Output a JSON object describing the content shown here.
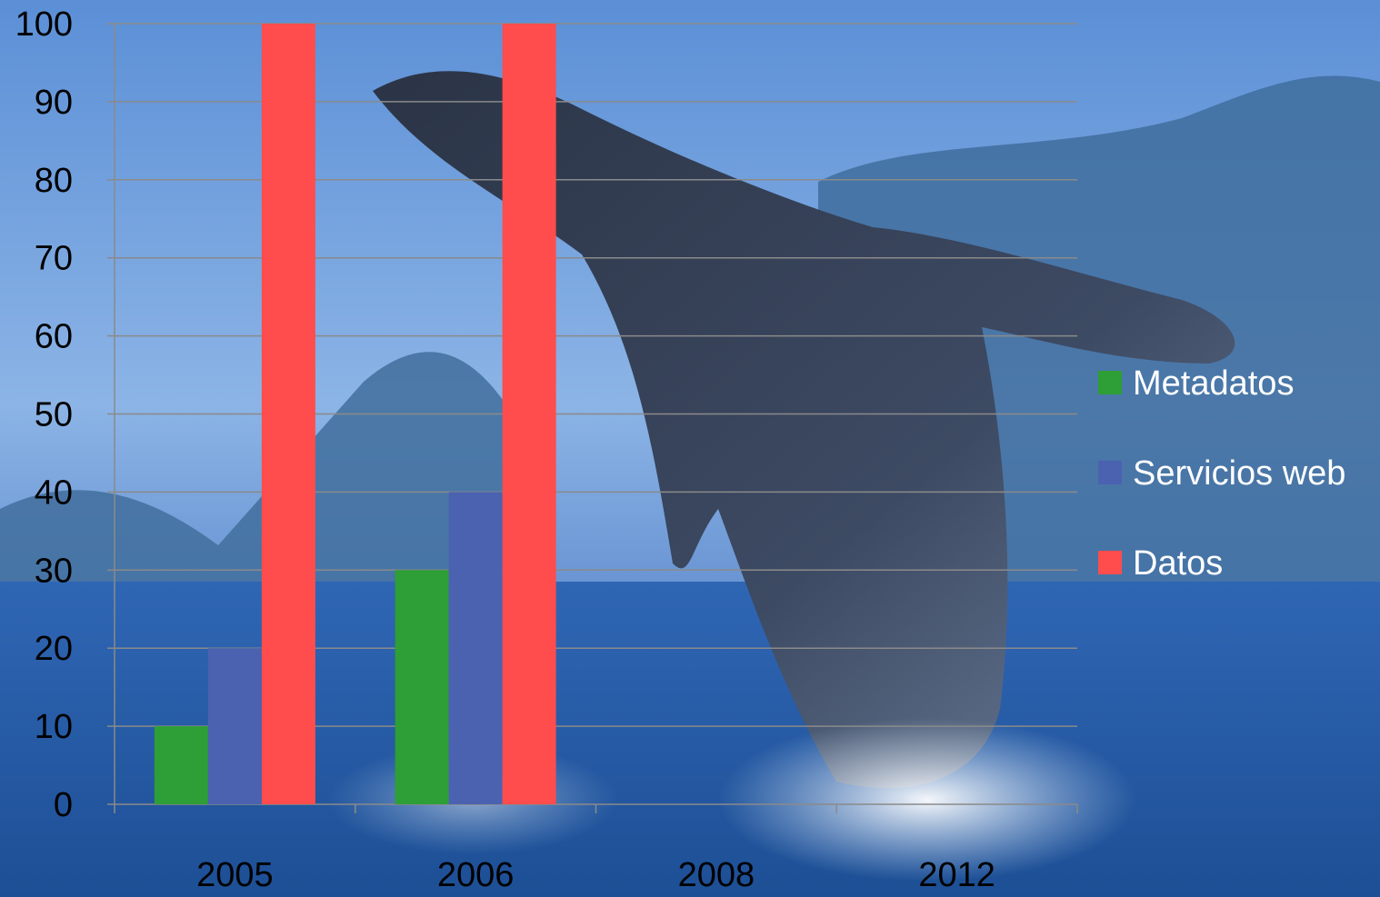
{
  "chart_data": {
    "type": "bar",
    "categories": [
      "2005",
      "2006",
      "2008",
      "2012"
    ],
    "series": [
      {
        "name": "Metadatos",
        "color": "#2e9e37",
        "values": [
          10,
          30,
          null,
          null
        ]
      },
      {
        "name": "Servicios web",
        "color": "#4a62b0",
        "values": [
          20,
          40,
          null,
          null
        ]
      },
      {
        "name": "Datos",
        "color": "#ff4d4d",
        "values": [
          100,
          100,
          null,
          null
        ]
      }
    ],
    "ylim": [
      0,
      100
    ],
    "yticks": [
      "0",
      "10",
      "20",
      "30",
      "40",
      "50",
      "60",
      "70",
      "80",
      "90",
      "100"
    ],
    "grid": true,
    "legend_position": "right",
    "background": "photo of a humpback whale breaching from the sea in front of mountains"
  }
}
